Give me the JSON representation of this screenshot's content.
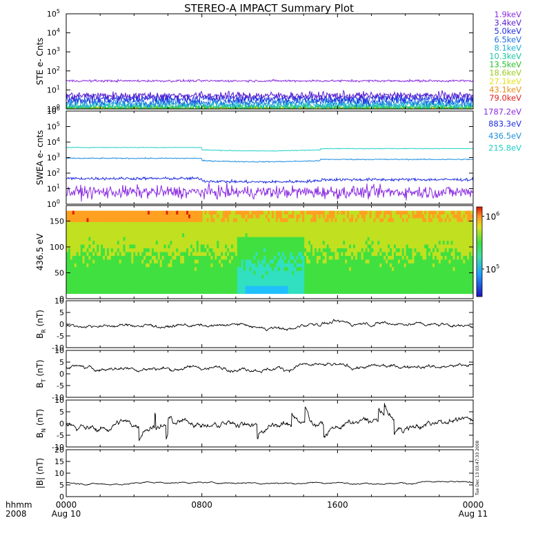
{
  "title": "STEREO-A IMPACT Summary Plot",
  "time_axis": {
    "row1_label": "hhmm",
    "row2_label": "2008",
    "ticks": [
      {
        "time": "0000",
        "date": "Aug 10"
      },
      {
        "time": "0800",
        "date": ""
      },
      {
        "time": "1600",
        "date": ""
      },
      {
        "time": "0000",
        "date": "Aug 11"
      }
    ],
    "range_hours": [
      0,
      24
    ]
  },
  "side_stamp": "Tue Dec 13 03:47:33 2008",
  "colors": {
    "frame": "#000000",
    "trace": "#000000"
  },
  "chart_data": [
    {
      "type": "line",
      "name": "ste",
      "ylabel": "STE e- Cnts",
      "yscale": "log",
      "ylim": [
        1,
        100000
      ],
      "yticks": [
        {
          "value": 1,
          "exp": "0"
        },
        {
          "value": 10,
          "exp": "1"
        },
        {
          "value": 100,
          "exp": "2"
        },
        {
          "value": 1000,
          "exp": "3"
        },
        {
          "value": 10000,
          "exp": "4"
        },
        {
          "value": 100000,
          "exp": "5"
        }
      ],
      "series": [
        {
          "name": "1.9keV",
          "color": "#8a2be2",
          "level": 30,
          "noise": 0.05
        },
        {
          "name": "3.4keV",
          "color": "#5a1fd0",
          "level": 5,
          "noise": 0.18
        },
        {
          "name": "5.0keV",
          "color": "#1f2fdf",
          "level": 3.5,
          "noise": 0.2
        },
        {
          "name": "6.5keV",
          "color": "#1e6fe0",
          "level": 2.4,
          "noise": 0.2
        },
        {
          "name": "8.1keV",
          "color": "#1fb0d8",
          "level": 1.8,
          "noise": 0.18
        },
        {
          "name": "10.3keV",
          "color": "#19c8a0",
          "level": 1.4,
          "noise": 0.15
        },
        {
          "name": "13.5keV",
          "color": "#2cc02c",
          "level": 1.2,
          "noise": 0.12
        },
        {
          "name": "18.6keV",
          "color": "#9ccc20",
          "level": 1.1,
          "noise": 0.1
        },
        {
          "name": "27.1keV",
          "color": "#e8e020",
          "level": 1.05,
          "noise": 0.08
        },
        {
          "name": "43.1keV",
          "color": "#e89020",
          "level": 1.02,
          "noise": 0.06
        },
        {
          "name": "79.0keV",
          "color": "#e02020",
          "level": 1.01,
          "noise": 0.05
        }
      ]
    },
    {
      "type": "line",
      "name": "swea",
      "ylabel": "SWEA e- cnts",
      "yscale": "log",
      "ylim": [
        1,
        1000000
      ],
      "yticks": [
        {
          "value": 1,
          "exp": "0"
        },
        {
          "value": 10,
          "exp": "1"
        },
        {
          "value": 100,
          "exp": "2"
        },
        {
          "value": 1000,
          "exp": "3"
        },
        {
          "value": 10000,
          "exp": "4"
        },
        {
          "value": 100000,
          "exp": "5"
        },
        {
          "value": 1000000,
          "exp": "6"
        }
      ],
      "series": [
        {
          "name": "1787.2eV",
          "color": "#8a2be2",
          "level": 6,
          "noise": 0.35
        },
        {
          "name": "883.3eV",
          "color": "#1f2fdf",
          "level": 45,
          "noise": 0.08
        },
        {
          "name": "436.5eV",
          "color": "#1f8fdf",
          "level": 900,
          "noise": 0.03
        },
        {
          "name": "215.8eV",
          "color": "#20d0c8",
          "level": 4500,
          "noise": 0.02
        }
      ]
    },
    {
      "type": "heatmap",
      "name": "pad",
      "ylabel": "436.5 eV",
      "ylim": [
        0,
        180
      ],
      "yticks": [
        0,
        50,
        100,
        150
      ],
      "colorbar": {
        "ticks": [
          {
            "value": 100000,
            "label": "10",
            "exp": "5"
          },
          {
            "value": 1000000,
            "label": "10",
            "exp": "6"
          }
        ],
        "range": [
          30000,
          1500000
        ],
        "scale": "log"
      }
    },
    {
      "type": "line",
      "name": "br",
      "ylabel_main": "B",
      "ylabel_sub": "R",
      "ylabel_unit": " (nT)",
      "ylim": [
        -10,
        10
      ],
      "yticks": [
        -10,
        -5,
        0,
        5,
        10
      ],
      "baseline": -0.5,
      "amplitude": 2.2
    },
    {
      "type": "line",
      "name": "bt",
      "ylabel_main": "B",
      "ylabel_sub": "T",
      "ylabel_unit": " (nT)",
      "ylim": [
        -10,
        10
      ],
      "yticks": [
        -10,
        -5,
        0,
        5,
        10
      ],
      "baseline": 3,
      "amplitude": 2.5
    },
    {
      "type": "line",
      "name": "bn",
      "ylabel_main": "B",
      "ylabel_sub": "N",
      "ylabel_unit": " (nT)",
      "ylim": [
        -10,
        10
      ],
      "yticks": [
        -10,
        -5,
        0,
        5,
        10
      ],
      "baseline": 0,
      "amplitude": 4
    },
    {
      "type": "line",
      "name": "bmag",
      "ylabel_main": "|B|",
      "ylabel_sub": "",
      "ylabel_unit": " (nT)",
      "ylim": [
        0,
        20
      ],
      "yticks": [
        0,
        5,
        10,
        15,
        20
      ],
      "baseline": 6,
      "amplitude": 0.9
    }
  ]
}
